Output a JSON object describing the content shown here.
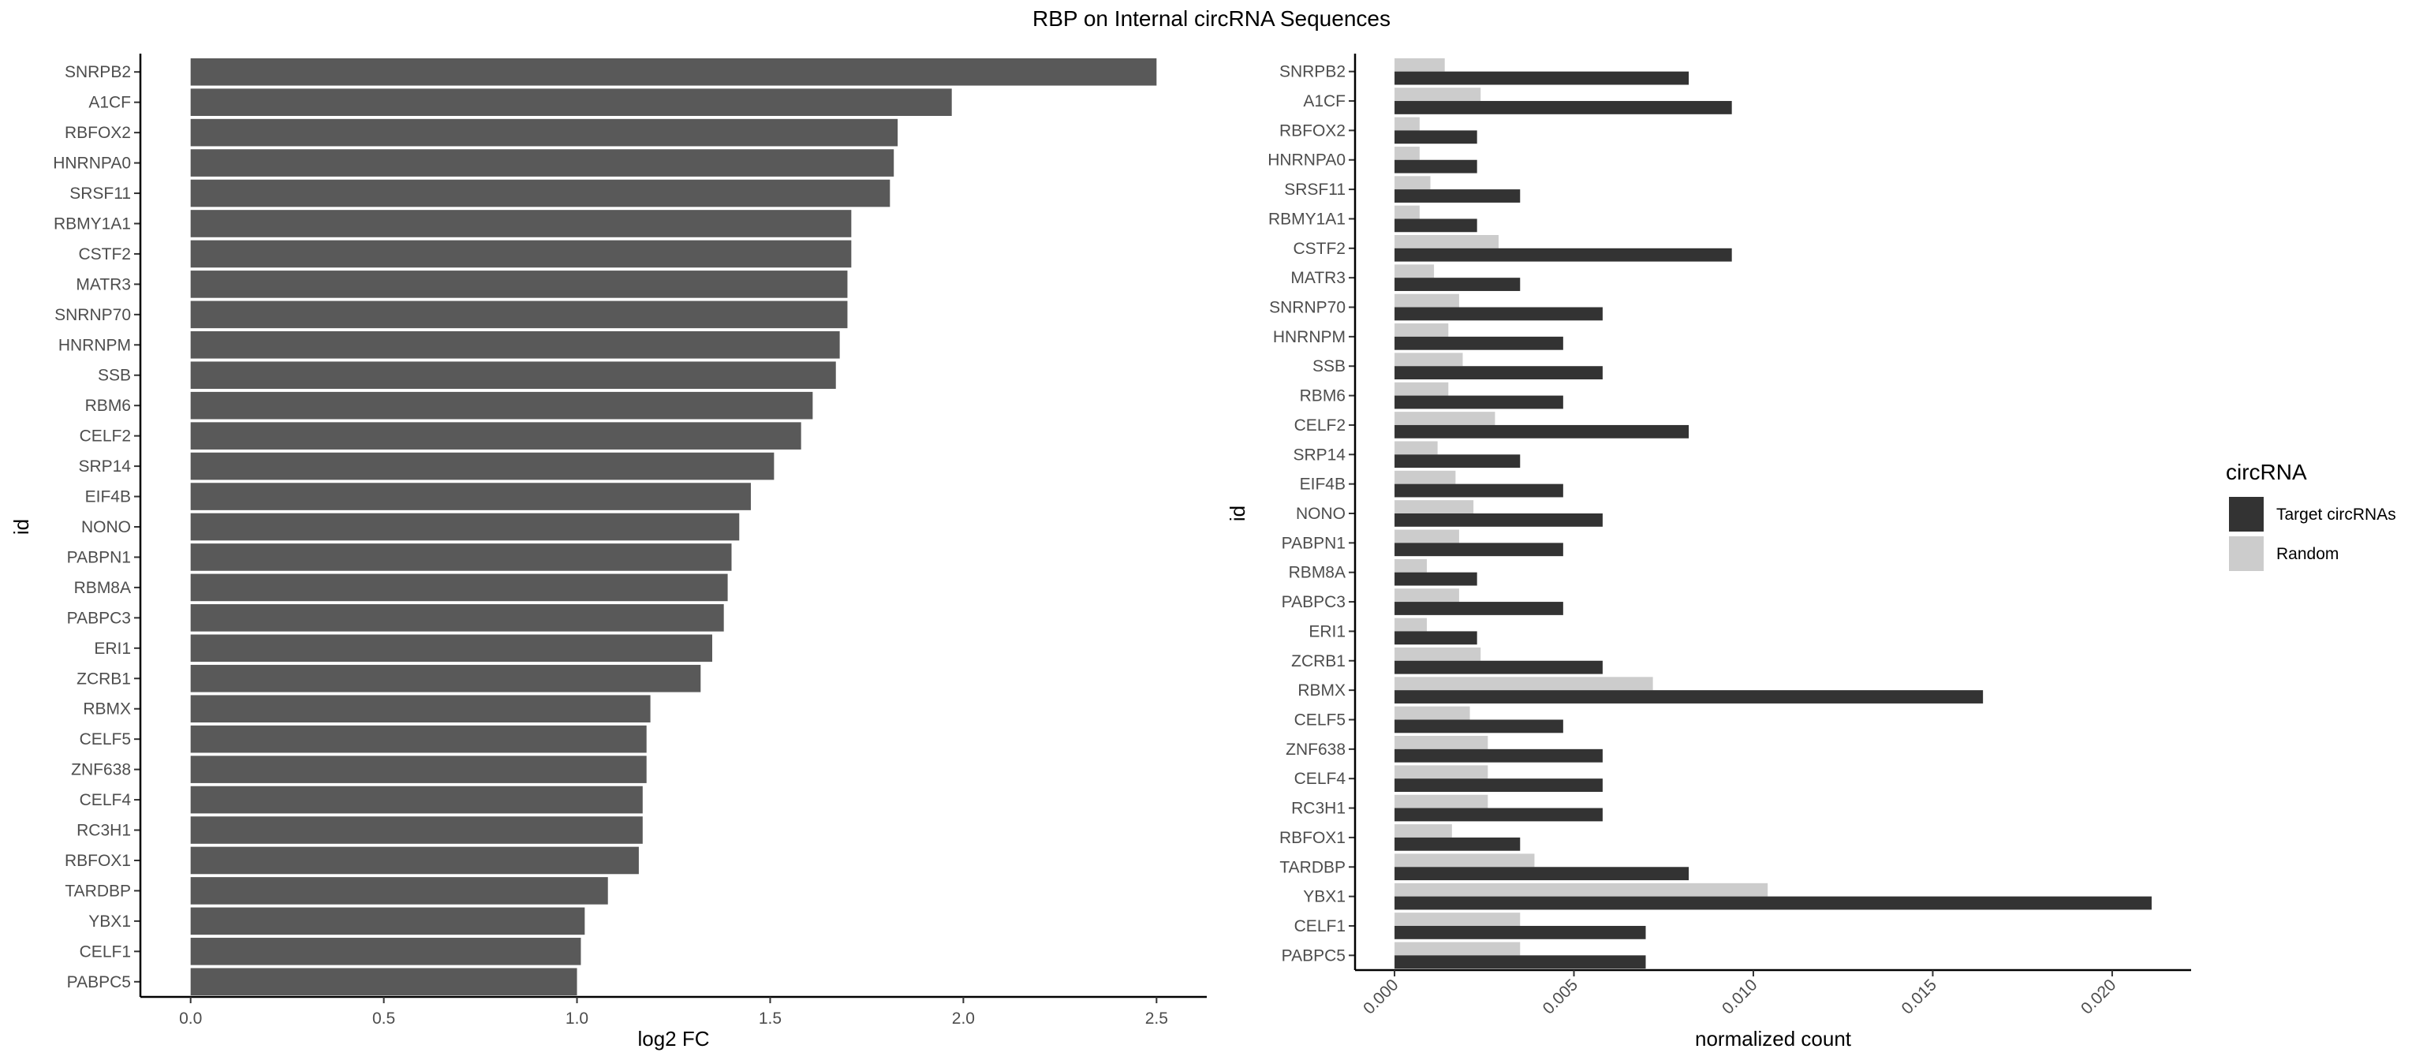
{
  "title": "RBP on Internal circRNA Sequences",
  "colors": {
    "left_bars": "#595959",
    "target": "#333333",
    "random": "#cccccc",
    "axis": "#000000",
    "tick_text": "#4d4d4d"
  },
  "chart_data": [
    {
      "type": "bar",
      "orientation": "horizontal",
      "categories": [
        "SNRPB2",
        "A1CF",
        "RBFOX2",
        "HNRNPA0",
        "SRSF11",
        "RBMY1A1",
        "CSTF2",
        "MATR3",
        "SNRNP70",
        "HNRNPM",
        "SSB",
        "RBM6",
        "CELF2",
        "SRP14",
        "EIF4B",
        "NONO",
        "PABPN1",
        "RBM8A",
        "PABPC3",
        "ERI1",
        "ZCRB1",
        "RBMX",
        "CELF5",
        "ZNF638",
        "CELF4",
        "RC3H1",
        "RBFOX1",
        "TARDBP",
        "YBX1",
        "CELF1",
        "PABPC5"
      ],
      "values": [
        2.5,
        1.97,
        1.83,
        1.82,
        1.81,
        1.71,
        1.71,
        1.7,
        1.7,
        1.68,
        1.67,
        1.61,
        1.58,
        1.51,
        1.45,
        1.42,
        1.4,
        1.39,
        1.38,
        1.35,
        1.32,
        1.19,
        1.18,
        1.18,
        1.17,
        1.17,
        1.16,
        1.08,
        1.02,
        1.01,
        1.0
      ],
      "xlabel": "log2 FC",
      "ylabel": "id",
      "xlim": [
        -0.13,
        2.63
      ],
      "xticks": [
        0.0,
        0.5,
        1.0,
        1.5,
        2.0,
        2.5
      ],
      "xtick_labels": [
        "0.0",
        "0.5",
        "1.0",
        "1.5",
        "2.0",
        "2.5"
      ],
      "grid": false
    },
    {
      "type": "bar",
      "orientation": "horizontal",
      "grouped": true,
      "categories": [
        "SNRPB2",
        "A1CF",
        "RBFOX2",
        "HNRNPA0",
        "SRSF11",
        "RBMY1A1",
        "CSTF2",
        "MATR3",
        "SNRNP70",
        "HNRNPM",
        "SSB",
        "RBM6",
        "CELF2",
        "SRP14",
        "EIF4B",
        "NONO",
        "PABPN1",
        "RBM8A",
        "PABPC3",
        "ERI1",
        "ZCRB1",
        "RBMX",
        "CELF5",
        "ZNF638",
        "CELF4",
        "RC3H1",
        "RBFOX1",
        "TARDBP",
        "YBX1",
        "CELF1",
        "PABPC5"
      ],
      "series": [
        {
          "name": "Target circRNAs",
          "values": [
            0.0082,
            0.0094,
            0.0023,
            0.0023,
            0.0035,
            0.0023,
            0.0094,
            0.0035,
            0.0058,
            0.0047,
            0.0058,
            0.0047,
            0.0082,
            0.0035,
            0.0047,
            0.0058,
            0.0047,
            0.0023,
            0.0047,
            0.0023,
            0.0058,
            0.0164,
            0.0047,
            0.0058,
            0.0058,
            0.0058,
            0.0035,
            0.0082,
            0.0211,
            0.007,
            0.007
          ]
        },
        {
          "name": "Random",
          "values": [
            0.0014,
            0.0024,
            0.0007,
            0.0007,
            0.001,
            0.0007,
            0.0029,
            0.0011,
            0.0018,
            0.0015,
            0.0019,
            0.0015,
            0.0028,
            0.0012,
            0.0017,
            0.0022,
            0.0018,
            0.0009,
            0.0018,
            0.0009,
            0.0024,
            0.0072,
            0.0021,
            0.0026,
            0.0026,
            0.0026,
            0.0016,
            0.0039,
            0.0104,
            0.0035,
            0.0035
          ]
        }
      ],
      "xlabel": "normalized count",
      "ylabel": "id",
      "xlim": [
        -0.0011,
        0.0222
      ],
      "xticks": [
        0.0,
        0.005,
        0.01,
        0.015,
        0.02
      ],
      "xtick_labels": [
        "0.000",
        "0.005",
        "0.010",
        "0.015",
        "0.020"
      ],
      "legend": {
        "title": "circRNA",
        "placement": "right"
      },
      "grid": false
    }
  ]
}
